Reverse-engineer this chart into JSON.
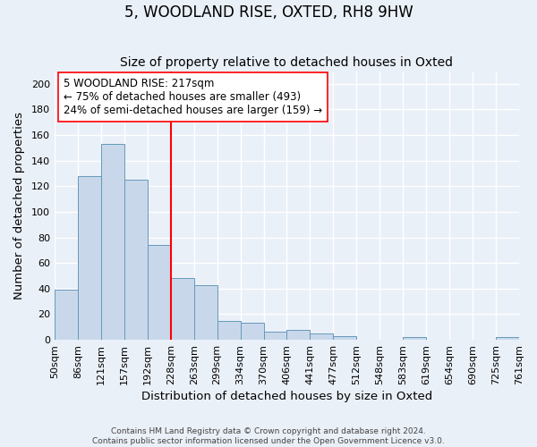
{
  "title": "5, WOODLAND RISE, OXTED, RH8 9HW",
  "subtitle": "Size of property relative to detached houses in Oxted",
  "xlabel": "Distribution of detached houses by size in Oxted",
  "ylabel": "Number of detached properties",
  "footer_lines": [
    "Contains HM Land Registry data © Crown copyright and database right 2024.",
    "Contains public sector information licensed under the Open Government Licence v3.0."
  ],
  "bar_heights": [
    39,
    128,
    153,
    125,
    74,
    48,
    43,
    15,
    13,
    6,
    8,
    5,
    3,
    0,
    0,
    2,
    0,
    0,
    0,
    2
  ],
  "bar_color": "#c8d8ea",
  "bar_edgecolor": "#6699bb",
  "vline_index": 5,
  "vline_color": "red",
  "annotation_text": "5 WOODLAND RISE: 217sqm\n← 75% of detached houses are smaller (493)\n24% of semi-detached houses are larger (159) →",
  "annotation_box_edgecolor": "red",
  "annotation_box_facecolor": "white",
  "ylim": [
    0,
    210
  ],
  "tick_labels": [
    "50sqm",
    "86sqm",
    "121sqm",
    "157sqm",
    "192sqm",
    "228sqm",
    "263sqm",
    "299sqm",
    "334sqm",
    "370sqm",
    "406sqm",
    "441sqm",
    "477sqm",
    "512sqm",
    "548sqm",
    "583sqm",
    "619sqm",
    "654sqm",
    "690sqm",
    "725sqm",
    "761sqm"
  ],
  "background_color": "#eaf0f8",
  "grid_color": "#ffffff",
  "fig_background": "#eaf0f8",
  "title_fontsize": 12,
  "subtitle_fontsize": 10,
  "axis_label_fontsize": 9.5,
  "tick_fontsize": 8,
  "annotation_fontsize": 8.5,
  "yticks": [
    0,
    20,
    40,
    60,
    80,
    100,
    120,
    140,
    160,
    180,
    200
  ]
}
